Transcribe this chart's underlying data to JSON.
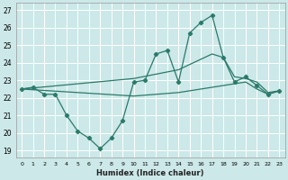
{
  "xlabel": "Humidex (Indice chaleur)",
  "xlim": [
    -0.5,
    23.5
  ],
  "ylim": [
    18.6,
    27.4
  ],
  "yticks": [
    19,
    20,
    21,
    22,
    23,
    24,
    25,
    26,
    27
  ],
  "xticks": [
    0,
    1,
    2,
    3,
    4,
    5,
    6,
    7,
    8,
    9,
    10,
    11,
    12,
    13,
    14,
    15,
    16,
    17,
    18,
    19,
    20,
    21,
    22,
    23
  ],
  "bg_color": "#cce8e8",
  "line_color": "#2a7a6a",
  "grid_color": "#ffffff",
  "line1_x": [
    0,
    1,
    2,
    3,
    4,
    5,
    6,
    7,
    8,
    9,
    10,
    11,
    12,
    13,
    14,
    15,
    16,
    17,
    18,
    19,
    20,
    21,
    22,
    23
  ],
  "line1_y": [
    22.5,
    22.6,
    22.2,
    22.2,
    21.0,
    20.1,
    19.7,
    19.1,
    19.7,
    20.7,
    22.9,
    23.0,
    24.5,
    24.7,
    22.9,
    25.7,
    26.3,
    26.7,
    24.3,
    22.9,
    23.2,
    22.7,
    22.2,
    22.4
  ],
  "line2_x": [
    0,
    10,
    14,
    17,
    18,
    19,
    20,
    21,
    22,
    23
  ],
  "line2_y": [
    22.5,
    23.1,
    23.6,
    24.5,
    24.3,
    23.2,
    23.1,
    22.9,
    22.3,
    22.4
  ],
  "line3_x": [
    0,
    10,
    14,
    17,
    18,
    19,
    20,
    21,
    22,
    23
  ],
  "line3_y": [
    22.5,
    22.1,
    22.3,
    22.6,
    22.7,
    22.8,
    22.9,
    22.5,
    22.2,
    22.4
  ]
}
